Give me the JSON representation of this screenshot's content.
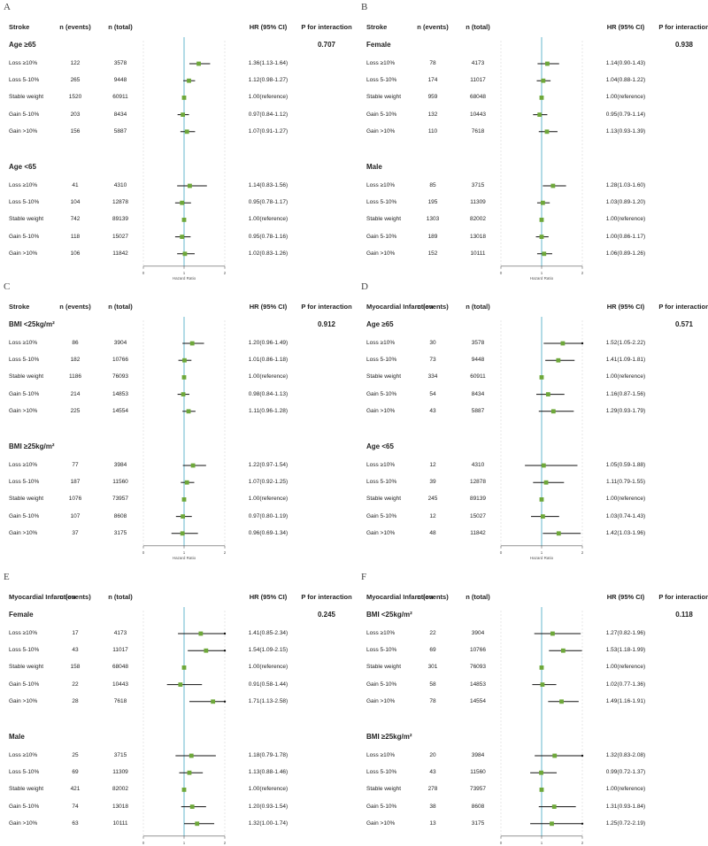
{
  "chart_data": [
    {
      "type": "forest",
      "panel_letter": "A",
      "headers": {
        "label": "Stroke",
        "events": "n (events)",
        "total": "n (total)",
        "hr": "HR (95% CI)",
        "p": "P for interaction"
      },
      "p_interaction": "0.707",
      "x_axis": {
        "ticks": [
          "0",
          "1",
          "2"
        ],
        "label": "Hazard Ratio",
        "reference_line": 1,
        "range": [
          0,
          2
        ]
      },
      "groups": [
        {
          "title": "Age ≥65",
          "rows": [
            {
              "label": "Loss ≥10%",
              "events": "122",
              "total": "3578",
              "hr_text": "1.36(1.13-1.64)",
              "hr": 1.36,
              "lo": 1.13,
              "hi": 1.64
            },
            {
              "label": "Loss 5-10%",
              "events": "265",
              "total": "9448",
              "hr_text": "1.12(0.98-1.27)",
              "hr": 1.12,
              "lo": 0.98,
              "hi": 1.27
            },
            {
              "label": "Stable weight",
              "events": "1520",
              "total": "60911",
              "hr_text": "1.00(reference)",
              "hr": 1.0,
              "lo": 1.0,
              "hi": 1.0
            },
            {
              "label": "Gain 5-10%",
              "events": "203",
              "total": "8434",
              "hr_text": "0.97(0.84-1.12)",
              "hr": 0.97,
              "lo": 0.84,
              "hi": 1.12
            },
            {
              "label": "Gain >10%",
              "events": "156",
              "total": "5887",
              "hr_text": "1.07(0.91-1.27)",
              "hr": 1.07,
              "lo": 0.91,
              "hi": 1.27
            }
          ]
        },
        {
          "title": "Age <65",
          "rows": [
            {
              "label": "Loss ≥10%",
              "events": "41",
              "total": "4310",
              "hr_text": "1.14(0.83-1.56)",
              "hr": 1.14,
              "lo": 0.83,
              "hi": 1.56
            },
            {
              "label": "Loss 5-10%",
              "events": "104",
              "total": "12878",
              "hr_text": "0.95(0.78-1.17)",
              "hr": 0.95,
              "lo": 0.78,
              "hi": 1.17
            },
            {
              "label": "Stable weight",
              "events": "742",
              "total": "89139",
              "hr_text": "1.00(reference)",
              "hr": 1.0,
              "lo": 1.0,
              "hi": 1.0
            },
            {
              "label": "Gain 5-10%",
              "events": "118",
              "total": "15027",
              "hr_text": "0.95(0.78-1.16)",
              "hr": 0.95,
              "lo": 0.78,
              "hi": 1.16
            },
            {
              "label": "Gain >10%",
              "events": "106",
              "total": "11842",
              "hr_text": "1.02(0.83-1.26)",
              "hr": 1.02,
              "lo": 0.83,
              "hi": 1.26
            }
          ]
        }
      ]
    },
    {
      "type": "forest",
      "panel_letter": "B",
      "headers": {
        "label": "Stroke",
        "events": "n (events)",
        "total": "n (total)",
        "hr": "HR (95% CI)",
        "p": "P for interaction"
      },
      "p_interaction": "0.938",
      "x_axis": {
        "ticks": [
          "0",
          "1",
          "2"
        ],
        "label": "Hazard Ratio",
        "reference_line": 1,
        "range": [
          0,
          2
        ]
      },
      "groups": [
        {
          "title": "Female",
          "rows": [
            {
              "label": "Loss ≥10%",
              "events": "78",
              "total": "4173",
              "hr_text": "1.14(0.90-1.43)",
              "hr": 1.14,
              "lo": 0.9,
              "hi": 1.43
            },
            {
              "label": "Loss 5-10%",
              "events": "174",
              "total": "11017",
              "hr_text": "1.04(0.88-1.22)",
              "hr": 1.04,
              "lo": 0.88,
              "hi": 1.22
            },
            {
              "label": "Stable weight",
              "events": "959",
              "total": "68048",
              "hr_text": "1.00(reference)",
              "hr": 1.0,
              "lo": 1.0,
              "hi": 1.0
            },
            {
              "label": "Gain 5-10%",
              "events": "132",
              "total": "10443",
              "hr_text": "0.95(0.79-1.14)",
              "hr": 0.95,
              "lo": 0.79,
              "hi": 1.14
            },
            {
              "label": "Gain >10%",
              "events": "110",
              "total": "7618",
              "hr_text": "1.13(0.93-1.39)",
              "hr": 1.13,
              "lo": 0.93,
              "hi": 1.39
            }
          ]
        },
        {
          "title": "Male",
          "rows": [
            {
              "label": "Loss ≥10%",
              "events": "85",
              "total": "3715",
              "hr_text": "1.28(1.03-1.60)",
              "hr": 1.28,
              "lo": 1.03,
              "hi": 1.6
            },
            {
              "label": "Loss 5-10%",
              "events": "195",
              "total": "11309",
              "hr_text": "1.03(0.89-1.20)",
              "hr": 1.03,
              "lo": 0.89,
              "hi": 1.2
            },
            {
              "label": "Stable weight",
              "events": "1303",
              "total": "82002",
              "hr_text": "1.00(reference)",
              "hr": 1.0,
              "lo": 1.0,
              "hi": 1.0
            },
            {
              "label": "Gain 5-10%",
              "events": "189",
              "total": "13018",
              "hr_text": "1.00(0.86-1.17)",
              "hr": 1.0,
              "lo": 0.86,
              "hi": 1.17
            },
            {
              "label": "Gain >10%",
              "events": "152",
              "total": "10111",
              "hr_text": "1.06(0.89-1.26)",
              "hr": 1.06,
              "lo": 0.89,
              "hi": 1.26
            }
          ]
        }
      ]
    },
    {
      "type": "forest",
      "panel_letter": "C",
      "headers": {
        "label": "Stroke",
        "events": "n (events)",
        "total": "n (total)",
        "hr": "HR (95% CI)",
        "p": "P for interaction"
      },
      "p_interaction": "0.912",
      "x_axis": {
        "ticks": [
          "0",
          "1",
          "2"
        ],
        "label": "Hazard Ratio",
        "reference_line": 1,
        "range": [
          0,
          2
        ]
      },
      "groups": [
        {
          "title": "BMI <25kg/m²",
          "rows": [
            {
              "label": "Loss ≥10%",
              "events": "86",
              "total": "3904",
              "hr_text": "1.20(0.96-1.49)",
              "hr": 1.2,
              "lo": 0.96,
              "hi": 1.49
            },
            {
              "label": "Loss 5-10%",
              "events": "182",
              "total": "10766",
              "hr_text": "1.01(0.86-1.18)",
              "hr": 1.01,
              "lo": 0.86,
              "hi": 1.18
            },
            {
              "label": "Stable weight",
              "events": "1186",
              "total": "76093",
              "hr_text": "1.00(reference)",
              "hr": 1.0,
              "lo": 1.0,
              "hi": 1.0
            },
            {
              "label": "Gain 5-10%",
              "events": "214",
              "total": "14853",
              "hr_text": "0.98(0.84-1.13)",
              "hr": 0.98,
              "lo": 0.84,
              "hi": 1.13
            },
            {
              "label": "Gain >10%",
              "events": "225",
              "total": "14554",
              "hr_text": "1.11(0.96-1.28)",
              "hr": 1.11,
              "lo": 0.96,
              "hi": 1.28
            }
          ]
        },
        {
          "title": "BMI ≥25kg/m²",
          "rows": [
            {
              "label": "Loss ≥10%",
              "events": "77",
              "total": "3984",
              "hr_text": "1.22(0.97-1.54)",
              "hr": 1.22,
              "lo": 0.97,
              "hi": 1.54
            },
            {
              "label": "Loss 5-10%",
              "events": "187",
              "total": "11560",
              "hr_text": "1.07(0.92-1.25)",
              "hr": 1.07,
              "lo": 0.92,
              "hi": 1.25
            },
            {
              "label": "Stable weight",
              "events": "1076",
              "total": "73957",
              "hr_text": "1.00(reference)",
              "hr": 1.0,
              "lo": 1.0,
              "hi": 1.0
            },
            {
              "label": "Gain 5-10%",
              "events": "107",
              "total": "8608",
              "hr_text": "0.97(0.80-1.19)",
              "hr": 0.97,
              "lo": 0.8,
              "hi": 1.19
            },
            {
              "label": "Gain >10%",
              "events": "37",
              "total": "3175",
              "hr_text": "0.96(0.69-1.34)",
              "hr": 0.96,
              "lo": 0.69,
              "hi": 1.34
            }
          ]
        }
      ]
    },
    {
      "type": "forest",
      "panel_letter": "D",
      "headers": {
        "label": "Myocardial Infarction",
        "events": "n (events)",
        "total": "n (total)",
        "hr": "HR (95% CI)",
        "p": "P for interaction"
      },
      "p_interaction": "0.571",
      "x_axis": {
        "ticks": [
          "0",
          "1",
          "2"
        ],
        "label": "Hazard Ratio",
        "reference_line": 1,
        "range": [
          0,
          2
        ]
      },
      "groups": [
        {
          "title": "Age ≥65",
          "rows": [
            {
              "label": "Loss ≥10%",
              "events": "30",
              "total": "3578",
              "hr_text": "1.52(1.05-2.22)",
              "hr": 1.52,
              "lo": 1.05,
              "hi": 2.22
            },
            {
              "label": "Loss 5-10%",
              "events": "73",
              "total": "9448",
              "hr_text": "1.41(1.09-1.81)",
              "hr": 1.41,
              "lo": 1.09,
              "hi": 1.81
            },
            {
              "label": "Stable weight",
              "events": "334",
              "total": "60911",
              "hr_text": "1.00(reference)",
              "hr": 1.0,
              "lo": 1.0,
              "hi": 1.0
            },
            {
              "label": "Gain 5-10%",
              "events": "54",
              "total": "8434",
              "hr_text": "1.16(0.87-1.56)",
              "hr": 1.16,
              "lo": 0.87,
              "hi": 1.56
            },
            {
              "label": "Gain >10%",
              "events": "43",
              "total": "5887",
              "hr_text": "1.29(0.93-1.79)",
              "hr": 1.29,
              "lo": 0.93,
              "hi": 1.79
            }
          ]
        },
        {
          "title": "Age <65",
          "rows": [
            {
              "label": "Loss ≥10%",
              "events": "12",
              "total": "4310",
              "hr_text": "1.05(0.59-1.88)",
              "hr": 1.05,
              "lo": 0.59,
              "hi": 1.88
            },
            {
              "label": "Loss 5-10%",
              "events": "39",
              "total": "12878",
              "hr_text": "1.11(0.79-1.55)",
              "hr": 1.11,
              "lo": 0.79,
              "hi": 1.55
            },
            {
              "label": "Stable weight",
              "events": "245",
              "total": "89139",
              "hr_text": "1.00(reference)",
              "hr": 1.0,
              "lo": 1.0,
              "hi": 1.0
            },
            {
              "label": "Gain 5-10%",
              "events": "12",
              "total": "15027",
              "hr_text": "1.03(0.74-1.43)",
              "hr": 1.03,
              "lo": 0.74,
              "hi": 1.43
            },
            {
              "label": "Gain >10%",
              "events": "48",
              "total": "11842",
              "hr_text": "1.42(1.03-1.96)",
              "hr": 1.42,
              "lo": 1.03,
              "hi": 1.96
            }
          ]
        }
      ]
    },
    {
      "type": "forest",
      "panel_letter": "E",
      "headers": {
        "label": "Myocardial Infarction",
        "events": "n (events)",
        "total": "n (total)",
        "hr": "HR (95% CI)",
        "p": "P for interaction"
      },
      "p_interaction": "0.245",
      "x_axis": {
        "ticks": [
          "0",
          "1",
          "2"
        ],
        "label": "Hazard Ratio",
        "reference_line": 1,
        "range": [
          0,
          2
        ]
      },
      "groups": [
        {
          "title": "Female",
          "rows": [
            {
              "label": "Loss ≥10%",
              "events": "17",
              "total": "4173",
              "hr_text": "1.41(0.85-2.34)",
              "hr": 1.41,
              "lo": 0.85,
              "hi": 2.34
            },
            {
              "label": "Loss 5-10%",
              "events": "43",
              "total": "11017",
              "hr_text": "1.54(1.09-2.15)",
              "hr": 1.54,
              "lo": 1.09,
              "hi": 2.15
            },
            {
              "label": "Stable weight",
              "events": "158",
              "total": "68048",
              "hr_text": "1.00(reference)",
              "hr": 1.0,
              "lo": 1.0,
              "hi": 1.0
            },
            {
              "label": "Gain 5-10%",
              "events": "22",
              "total": "10443",
              "hr_text": "0.91(0.58-1.44)",
              "hr": 0.91,
              "lo": 0.58,
              "hi": 1.44
            },
            {
              "label": "Gain >10%",
              "events": "28",
              "total": "7618",
              "hr_text": "1.71(1.13-2.58)",
              "hr": 1.71,
              "lo": 1.13,
              "hi": 2.58
            }
          ]
        },
        {
          "title": "Male",
          "rows": [
            {
              "label": "Loss ≥10%",
              "events": "25",
              "total": "3715",
              "hr_text": "1.18(0.79-1.78)",
              "hr": 1.18,
              "lo": 0.79,
              "hi": 1.78
            },
            {
              "label": "Loss 5-10%",
              "events": "69",
              "total": "11309",
              "hr_text": "1.13(0.88-1.46)",
              "hr": 1.13,
              "lo": 0.88,
              "hi": 1.46
            },
            {
              "label": "Stable weight",
              "events": "421",
              "total": "82002",
              "hr_text": "1.00(reference)",
              "hr": 1.0,
              "lo": 1.0,
              "hi": 1.0
            },
            {
              "label": "Gain 5-10%",
              "events": "74",
              "total": "13018",
              "hr_text": "1.20(0.93-1.54)",
              "hr": 1.2,
              "lo": 0.93,
              "hi": 1.54
            },
            {
              "label": "Gain >10%",
              "events": "63",
              "total": "10111",
              "hr_text": "1.32(1.00-1.74)",
              "hr": 1.32,
              "lo": 1.0,
              "hi": 1.74
            }
          ]
        }
      ]
    },
    {
      "type": "forest",
      "panel_letter": "F",
      "headers": {
        "label": "Myocardial Infarction",
        "events": "n (events)",
        "total": "n (total)",
        "hr": "HR (95% CI)",
        "p": "P for interaction"
      },
      "p_interaction": "0.118",
      "x_axis": {
        "ticks": [
          "0",
          "1",
          "2"
        ],
        "label": "Hazard Ratio",
        "reference_line": 1,
        "range": [
          0,
          2
        ]
      },
      "groups": [
        {
          "title": "BMI <25kg/m²",
          "rows": [
            {
              "label": "Loss ≥10%",
              "events": "22",
              "total": "3904",
              "hr_text": "1.27(0.82-1.96)",
              "hr": 1.27,
              "lo": 0.82,
              "hi": 1.96
            },
            {
              "label": "Loss 5-10%",
              "events": "69",
              "total": "10766",
              "hr_text": "1.53(1.18-1.99)",
              "hr": 1.53,
              "lo": 1.18,
              "hi": 1.99
            },
            {
              "label": "Stable weight",
              "events": "301",
              "total": "76093",
              "hr_text": "1.00(reference)",
              "hr": 1.0,
              "lo": 1.0,
              "hi": 1.0
            },
            {
              "label": "Gain 5-10%",
              "events": "58",
              "total": "14853",
              "hr_text": "1.02(0.77-1.36)",
              "hr": 1.02,
              "lo": 0.77,
              "hi": 1.36
            },
            {
              "label": "Gain >10%",
              "events": "78",
              "total": "14554",
              "hr_text": "1.49(1.16-1.91)",
              "hr": 1.49,
              "lo": 1.16,
              "hi": 1.91
            }
          ]
        },
        {
          "title": "BMI ≥25kg/m²",
          "rows": [
            {
              "label": "Loss ≥10%",
              "events": "20",
              "total": "3984",
              "hr_text": "1.32(0.83-2.08)",
              "hr": 1.32,
              "lo": 0.83,
              "hi": 2.08
            },
            {
              "label": "Loss 5-10%",
              "events": "43",
              "total": "11560",
              "hr_text": "0.99(0.72-1.37)",
              "hr": 0.99,
              "lo": 0.72,
              "hi": 1.37
            },
            {
              "label": "Stable weight",
              "events": "278",
              "total": "73957",
              "hr_text": "1.00(reference)",
              "hr": 1.0,
              "lo": 1.0,
              "hi": 1.0
            },
            {
              "label": "Gain 5-10%",
              "events": "38",
              "total": "8608",
              "hr_text": "1.31(0.93-1.84)",
              "hr": 1.31,
              "lo": 0.93,
              "hi": 1.84
            },
            {
              "label": "Gain >10%",
              "events": "13",
              "total": "3175",
              "hr_text": "1.25(0.72-2.19)",
              "hr": 1.25,
              "lo": 0.72,
              "hi": 2.19
            }
          ]
        }
      ]
    }
  ],
  "colors": {
    "point": "#6ea83a",
    "reference_line": "#7fc3d6",
    "ci_line": "#111111",
    "axis": "#555555"
  }
}
